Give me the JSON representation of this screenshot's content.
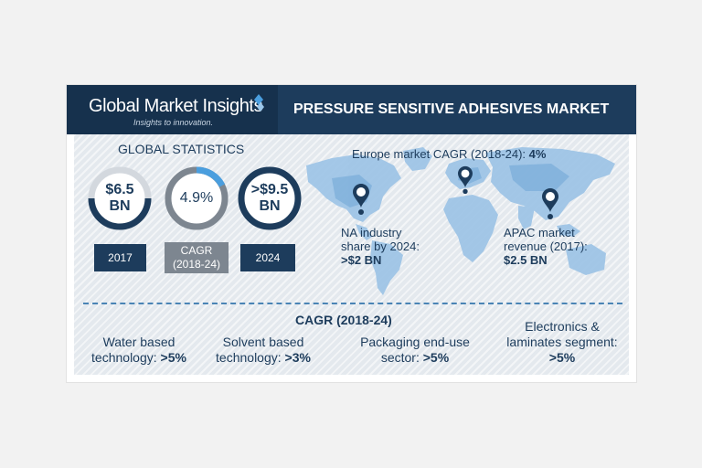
{
  "header": {
    "logo_name": "Global Market Insights",
    "logo_tagline": "Insights to innovation.",
    "title": "PRESSURE SENSITIVE ADHESIVES MARKET"
  },
  "global_stats": {
    "title": "GLOBAL STATISTICS",
    "items": [
      {
        "value_line1": "$6.5",
        "value_line2": "BN",
        "caption": "2017",
        "ring_fill_fraction": 1.0
      },
      {
        "value_line1": "4.9%",
        "value_line2": "",
        "caption_line1": "CAGR",
        "caption_line2": "(2018-24)",
        "ring_fill_fraction": 0.15
      },
      {
        "value_line1": ">$9.5",
        "value_line2": "BN",
        "caption": "2024",
        "ring_fill_fraction": 1.0
      }
    ]
  },
  "map": {
    "europe_label": "Europe market CAGR (2018-24):",
    "europe_value": "4%",
    "na_line1": "NA industry",
    "na_line2": "share by 2024:",
    "na_value": ">$2 BN",
    "apac_line1": "APAC market",
    "apac_line2": "revenue (2017):",
    "apac_value": "$2.5 BN"
  },
  "segments": {
    "title": "CAGR (2018-24)",
    "items": [
      {
        "line1": "Water based",
        "line2_prefix": "technology: ",
        "value": ">5%"
      },
      {
        "line1": "Solvent based",
        "line2_prefix": "technology: ",
        "value": ">3%"
      },
      {
        "line1": "Packaging end-use",
        "line2_prefix": "sector: ",
        "value": ">5%"
      },
      {
        "line1": "Electronics &",
        "line2_prefix": "laminates segment:",
        "value": ">5%"
      }
    ]
  },
  "colors": {
    "navy": "#1d3c5c",
    "accent_blue": "#4a9ede",
    "ring_gray": "#c9ced4",
    "cagr_box_gray": "#7d8690"
  }
}
